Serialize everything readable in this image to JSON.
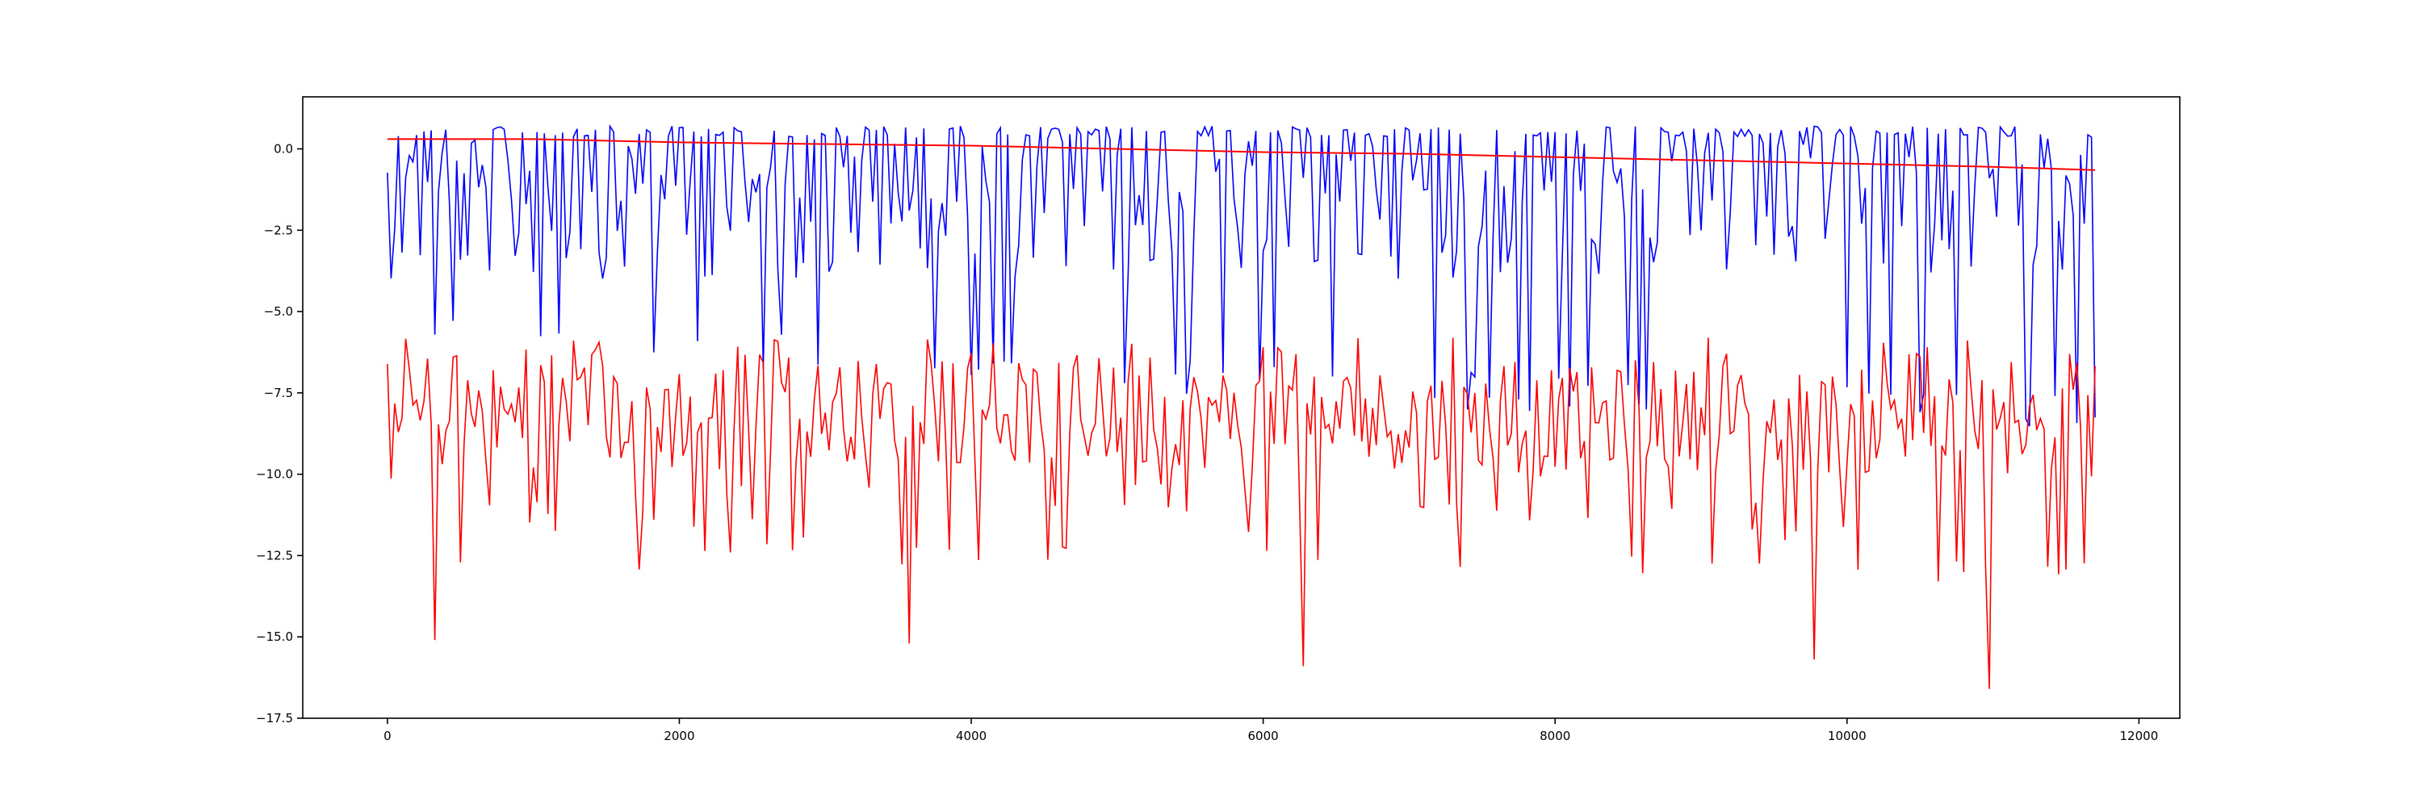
{
  "chart_data": {
    "type": "line",
    "title": "",
    "xlabel": "",
    "ylabel": "",
    "xlim": [
      -580,
      12280
    ],
    "ylim": [
      -17.5,
      1.6
    ],
    "grid": false,
    "legend": "none",
    "x_ticks": [
      0,
      2000,
      4000,
      6000,
      8000,
      10000,
      12000
    ],
    "x_tick_labels": [
      "0",
      "2000",
      "4000",
      "6000",
      "8000",
      "10000",
      "12000"
    ],
    "y_ticks": [
      0.0,
      -2.5,
      -5.0,
      -7.5,
      -10.0,
      -12.5,
      -15.0,
      -17.5
    ],
    "y_tick_labels": [
      "0.0",
      "−2.5",
      "−5.0",
      "−7.5",
      "−10.0",
      "−12.5",
      "−15.0",
      "−17.5"
    ],
    "colors": {
      "blue_series": "#0000ff",
      "red_series": "#ff0000",
      "trend_line": "#ff0000"
    },
    "series": [
      {
        "color": "#0000ff",
        "x_range": [
          0,
          11700
        ],
        "sample_step": 25,
        "upper_envelope": 0.7,
        "typical_range": [
          -4.0,
          0.7
        ],
        "lower_spikes_by_x": [
          [
            0,
            -4.5
          ],
          [
            2000,
            -5.5
          ],
          [
            4000,
            -6.0
          ],
          [
            6000,
            -6.5
          ],
          [
            8000,
            -7.0
          ],
          [
            10000,
            -7.0
          ],
          [
            11700,
            -7.5
          ]
        ]
      },
      {
        "color": "#ff0000",
        "x_range": [
          0,
          11700
        ],
        "sample_step": 25,
        "typical_range": [
          -10.5,
          -5.8
        ],
        "mean_by_x": [
          [
            0,
            -8.3
          ],
          [
            3000,
            -8.0
          ],
          [
            6000,
            -8.3
          ],
          [
            9000,
            -8.3
          ],
          [
            11700,
            -8.6
          ]
        ],
        "notable_minima": [
          [
            330,
            -15.1
          ],
          [
            3580,
            -15.2
          ],
          [
            6270,
            -15.9
          ],
          [
            9780,
            -15.7
          ],
          [
            10970,
            -16.6
          ]
        ]
      },
      {
        "color": "#ff0000",
        "role": "trend",
        "x": [
          0,
          1000,
          2000,
          3000,
          4000,
          5000,
          6000,
          7000,
          8000,
          9000,
          10000,
          11000,
          11700
        ],
        "y": [
          0.3,
          0.3,
          0.2,
          0.15,
          0.1,
          0.0,
          -0.1,
          -0.15,
          -0.25,
          -0.35,
          -0.45,
          -0.55,
          -0.65
        ]
      }
    ]
  }
}
